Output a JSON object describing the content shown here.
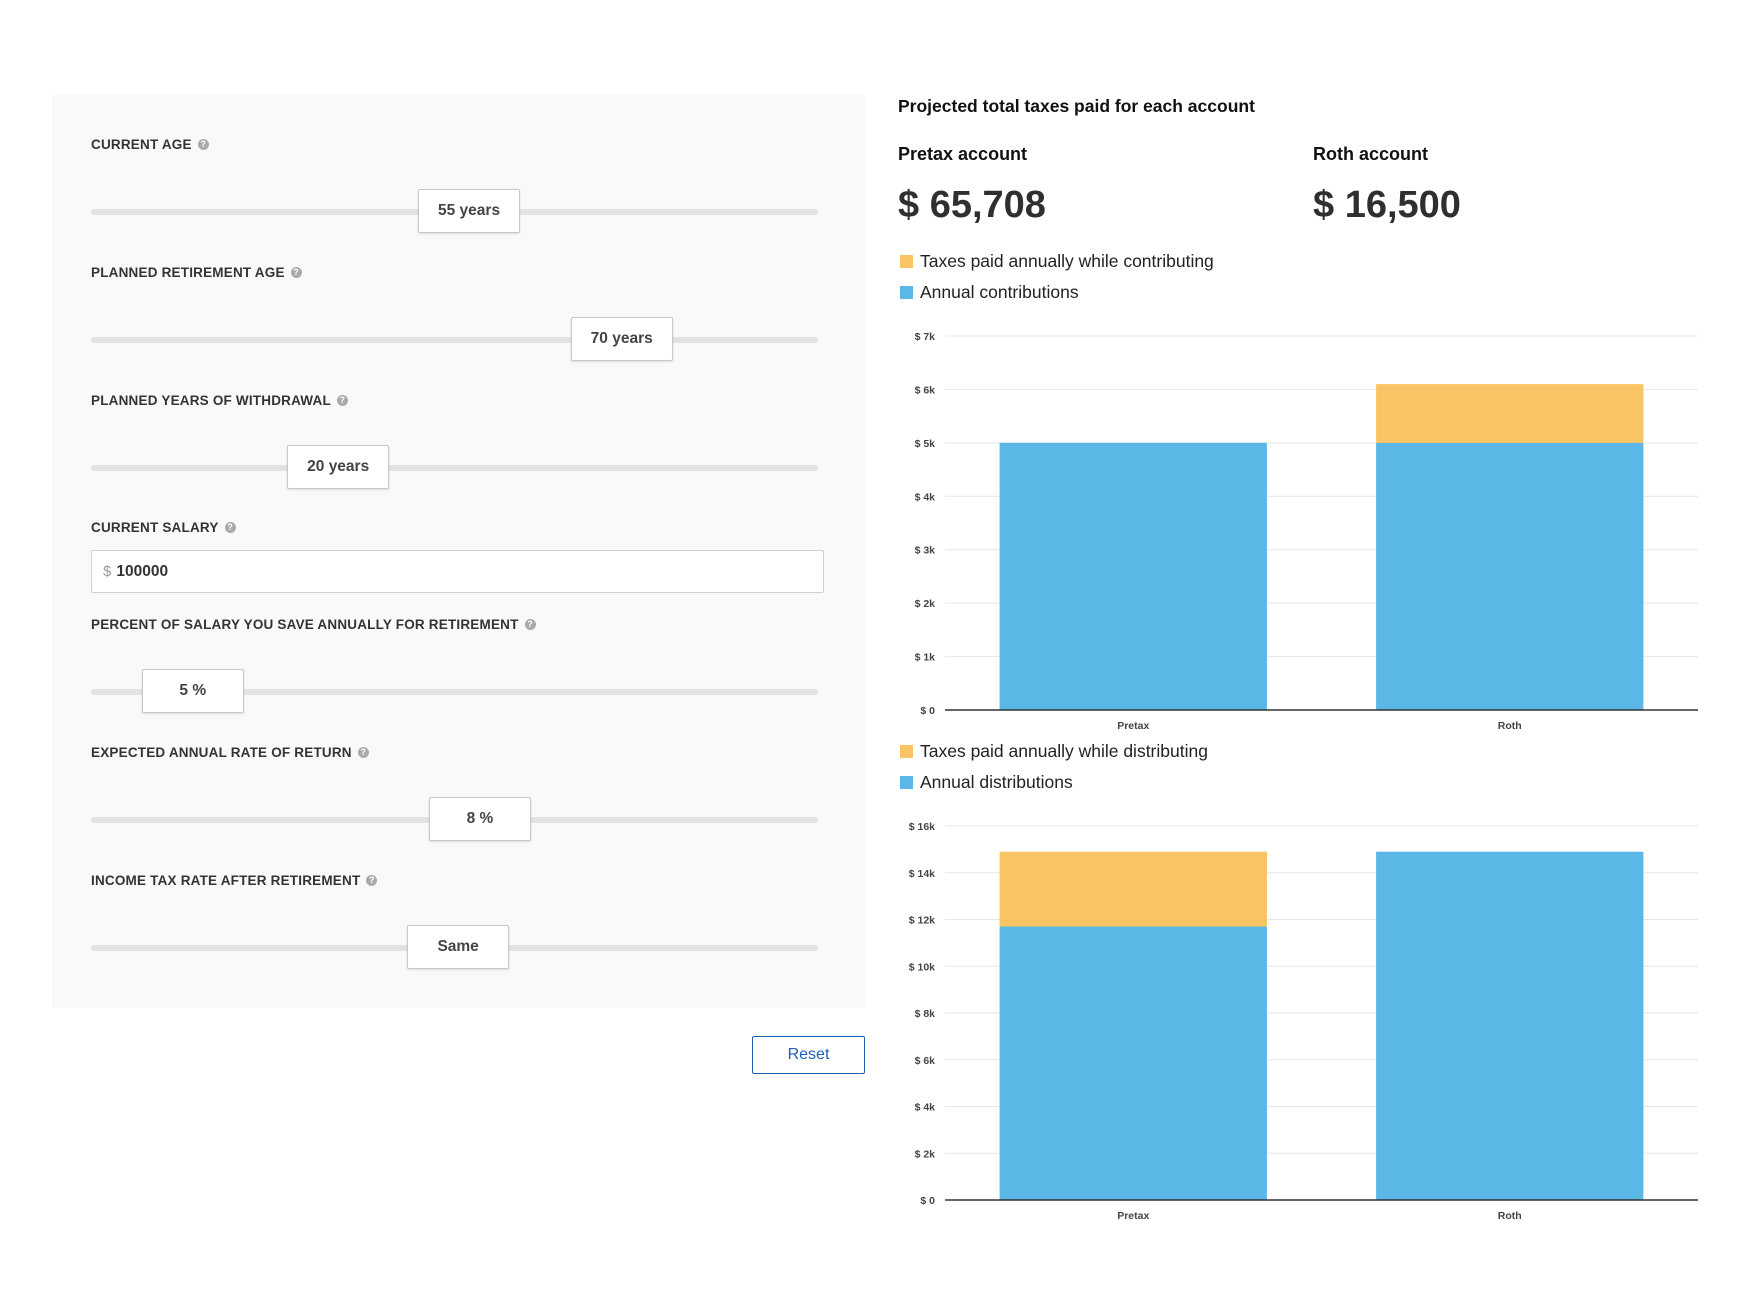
{
  "inputs": {
    "current_age": {
      "label": "CURRENT AGE",
      "value": "55 years",
      "fraction": 0.52
    },
    "retirement_age": {
      "label": "PLANNED RETIREMENT AGE",
      "value": "70 years",
      "fraction": 0.73
    },
    "years_withdrawal": {
      "label": "PLANNED YEARS OF WITHDRAWAL",
      "value": "20 years",
      "fraction": 0.34
    },
    "current_salary": {
      "label": "CURRENT SALARY",
      "prefix": "$",
      "value": "100000"
    },
    "percent_save": {
      "label": "PERCENT OF SALARY YOU SAVE ANNUALLY FOR RETIREMENT",
      "value": "5 %",
      "fraction": 0.14
    },
    "rate_return": {
      "label": "EXPECTED ANNUAL RATE OF RETURN",
      "value": "8 %",
      "fraction": 0.535
    },
    "tax_rate": {
      "label": "INCOME TAX RATE AFTER RETIREMENT",
      "value": "Same",
      "fraction": 0.505
    }
  },
  "help_glyph": "?",
  "reset_label": "Reset",
  "results": {
    "title": "Projected total taxes paid for each account",
    "pretax_label": "Pretax account",
    "pretax_value": "$ 65,708",
    "roth_label": "Roth account",
    "roth_value": "$ 16,500"
  },
  "colors": {
    "contribution": "#5bb8e6",
    "tax": "#f9c464"
  },
  "chart_data": [
    {
      "type": "bar",
      "stacked": true,
      "categories": [
        "Pretax",
        "Roth"
      ],
      "series": [
        {
          "name": "Annual contributions",
          "values": [
            5000,
            5000
          ]
        },
        {
          "name": "Taxes paid annually while contributing",
          "values": [
            0,
            1100
          ]
        }
      ],
      "ylim": [
        0,
        7000
      ],
      "yticks": [
        0,
        1000,
        2000,
        3000,
        4000,
        5000,
        6000,
        7000
      ],
      "ytick_labels": [
        "$ 0",
        "$ 1k",
        "$ 2k",
        "$ 3k",
        "$ 4k",
        "$ 5k",
        "$ 6k",
        "$ 7k"
      ],
      "grid": true,
      "legend": "top-left"
    },
    {
      "type": "bar",
      "stacked": true,
      "categories": [
        "Pretax",
        "Roth"
      ],
      "series": [
        {
          "name": "Annual distributions",
          "values": [
            11700,
            14900
          ]
        },
        {
          "name": "Taxes paid annually while distributing",
          "values": [
            3200,
            0
          ]
        }
      ],
      "ylim": [
        0,
        16000
      ],
      "yticks": [
        0,
        2000,
        4000,
        6000,
        8000,
        10000,
        12000,
        14000,
        16000
      ],
      "ytick_labels": [
        "$ 0",
        "$ 2k",
        "$ 4k",
        "$ 6k",
        "$ 8k",
        "$ 10k",
        "$ 12k",
        "$ 14k",
        "$ 16k"
      ],
      "grid": true,
      "legend": "top-left"
    }
  ]
}
